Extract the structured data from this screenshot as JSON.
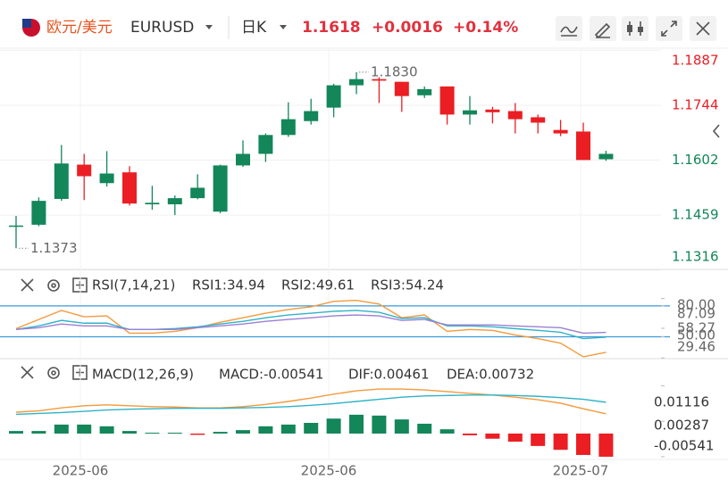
{
  "header": {
    "pair_name": "欧元/美元",
    "symbol": "EURUSD",
    "period": "日K",
    "price": 1.1618,
    "change": {
      "value": 0.0016,
      "label": "+0.0016"
    },
    "change_pct": {
      "value": 0.14,
      "label": "+0.14%"
    }
  },
  "chart_data": [
    {
      "type": "candlestick",
      "open": [
        1.143,
        1.1434,
        1.1501,
        1.159,
        1.1542,
        1.157,
        1.1487,
        1.1487,
        1.1503,
        1.1468,
        1.1588,
        1.1618,
        1.1667,
        1.1703,
        1.1738,
        1.1796,
        1.1812,
        1.1805,
        1.177,
        1.1793,
        1.172,
        1.1733,
        1.1729,
        1.1713,
        1.168,
        1.1676,
        1.1604
      ],
      "high": [
        1.1457,
        1.1505,
        1.1641,
        1.1618,
        1.1625,
        1.1586,
        1.1535,
        1.151,
        1.1565,
        1.159,
        1.1653,
        1.1671,
        1.1752,
        1.1761,
        1.18,
        1.183,
        1.1817,
        1.1805,
        1.1793,
        1.1793,
        1.1768,
        1.174,
        1.175,
        1.172,
        1.1706,
        1.1699,
        1.1626
      ],
      "low": [
        1.1373,
        1.143,
        1.1496,
        1.1498,
        1.1533,
        1.1484,
        1.1473,
        1.1459,
        1.15,
        1.1464,
        1.1584,
        1.1597,
        1.1662,
        1.1694,
        1.1713,
        1.1773,
        1.175,
        1.1727,
        1.1763,
        1.1694,
        1.1694,
        1.1697,
        1.1671,
        1.1671,
        1.1664,
        1.1602,
        1.16
      ],
      "close": [
        1.1432,
        1.1496,
        1.1593,
        1.156,
        1.1567,
        1.1489,
        1.1491,
        1.1503,
        1.153,
        1.1588,
        1.1618,
        1.1667,
        1.1708,
        1.1729,
        1.1796,
        1.1812,
        1.1808,
        1.1768,
        1.1786,
        1.172,
        1.1731,
        1.1726,
        1.1708,
        1.1699,
        1.1671,
        1.1602,
        1.1618
      ],
      "up_color": "#13865a",
      "down_color": "#eb1e23",
      "ylim": [
        1.1318,
        1.189
      ],
      "yticks": [
        1.1887,
        1.1744,
        1.1602,
        1.1459,
        1.1316
      ],
      "annotations": [
        {
          "value": 1.183,
          "label": "1.1830"
        },
        {
          "value": 1.1373,
          "label": "1.1373"
        }
      ],
      "x_labels": [
        "2025-06",
        "2025-06",
        "2025-07"
      ],
      "grid": true
    },
    {
      "type": "line",
      "title": "RSI(7,14,21)",
      "series": [
        {
          "label": "RSI1:34.94",
          "color": "#f39a3c",
          "values": [
            57.9,
            66.8,
            75.6,
            69.4,
            70.3,
            53.5,
            53.5,
            55.3,
            58.8,
            64.1,
            68.5,
            72.9,
            76.5,
            79.1,
            84.4,
            85.3,
            81.8,
            68.5,
            71.2,
            55.3,
            57.1,
            56.2,
            51.8,
            48.2,
            43.8,
            30.6,
            34.94
          ]
        },
        {
          "label": "RSI2:49.61",
          "color": "#2fb3c6",
          "values": [
            57.1,
            60.6,
            65.9,
            63.2,
            63.2,
            57.1,
            57.1,
            57.9,
            59.7,
            62.4,
            65.0,
            68.5,
            71.2,
            72.9,
            74.7,
            75.6,
            73.8,
            67.7,
            68.5,
            60.6,
            60.6,
            59.7,
            57.9,
            56.2,
            54.4,
            48.2,
            49.61
          ]
        },
        {
          "label": "RSI3:54.24",
          "color": "#9b7fd4",
          "values": [
            57.1,
            58.8,
            62.4,
            60.6,
            60.6,
            57.1,
            57.1,
            57.1,
            58.8,
            60.6,
            62.4,
            65.0,
            66.8,
            68.5,
            70.3,
            71.2,
            70.3,
            65.9,
            66.8,
            61.5,
            61.5,
            61.5,
            60.6,
            59.7,
            58.8,
            53.5,
            54.24
          ]
        }
      ],
      "ylim": [
        28.8,
        114.5
      ],
      "yticks": [
        {
          "value": 80,
          "label": "80.00"
        },
        87.09,
        58.27,
        {
          "value": 50,
          "label": "50.00"
        },
        29.46
      ],
      "level_lines": [
        80,
        50
      ],
      "level_color": "#3a9ad9"
    },
    {
      "type": "macd",
      "title": "MACD(12,26,9)",
      "histogram": {
        "label": "MACD:-0.00541",
        "color": "#9b7fd4",
        "values": [
          0.0006,
          0.0006,
          0.0021,
          0.0021,
          0.0017,
          0.0006,
          0.0002,
          0.0002,
          -0.0003,
          0.0004,
          0.0008,
          0.0017,
          0.0021,
          0.0025,
          0.0035,
          0.0044,
          0.0042,
          0.0033,
          0.0023,
          0.001,
          -0.0004,
          -0.0012,
          -0.0019,
          -0.0029,
          -0.0038,
          -0.005,
          -0.00541
        ]
      },
      "up_color": "#13865a",
      "down_color": "#eb1e23",
      "series": [
        {
          "label": "DIF:0.00461",
          "color": "#f39a3c",
          "values": [
            0.005,
            0.0053,
            0.006,
            0.0065,
            0.0067,
            0.0065,
            0.0063,
            0.0062,
            0.006,
            0.006,
            0.0063,
            0.0068,
            0.0075,
            0.0083,
            0.0092,
            0.01,
            0.0104,
            0.0104,
            0.0102,
            0.0098,
            0.0094,
            0.009,
            0.0085,
            0.0079,
            0.0071,
            0.0058,
            0.00461
          ]
        },
        {
          "label": "DEA:0.00732",
          "color": "#2fb3c6",
          "values": [
            0.0045,
            0.0047,
            0.0049,
            0.0052,
            0.0055,
            0.0057,
            0.0058,
            0.0059,
            0.0059,
            0.0059,
            0.006,
            0.0061,
            0.0063,
            0.0066,
            0.007,
            0.0075,
            0.008,
            0.0085,
            0.0088,
            0.0089,
            0.009,
            0.009,
            0.0089,
            0.0087,
            0.0084,
            0.008,
            0.00732
          ]
        }
      ],
      "ylim": [
        -0.00605,
        0.0173
      ],
      "yticks": [
        0.01116,
        0.00287,
        -0.00541
      ]
    }
  ]
}
